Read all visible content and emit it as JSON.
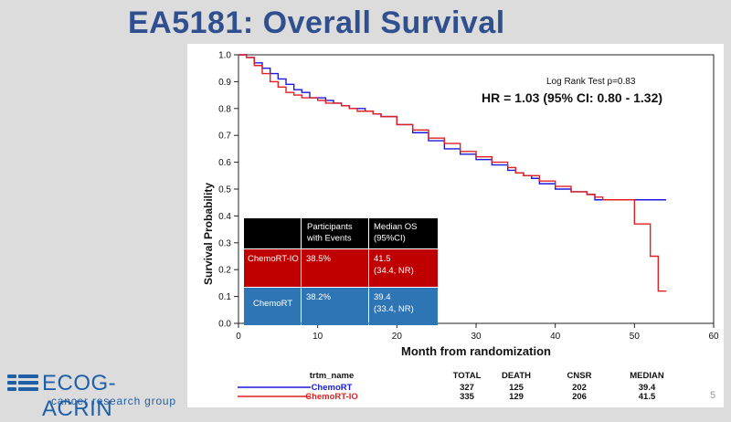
{
  "slide": {
    "title": "EA5181: Overall Survival",
    "page_number": "5"
  },
  "logo": {
    "name": "ECOG-ACRIN",
    "subtitle": "cancer research group"
  },
  "chart_data": {
    "type": "line",
    "xlabel": "Month from randomization",
    "ylabel": "Survival Probability",
    "xlim": [
      0,
      60
    ],
    "ylim": [
      0,
      1.0
    ],
    "xticks": [
      0,
      10,
      20,
      30,
      40,
      50,
      60
    ],
    "yticks": [
      0.0,
      0.1,
      0.2,
      0.3,
      0.4,
      0.5,
      0.6,
      0.7,
      0.8,
      0.9,
      1.0
    ],
    "annotations": {
      "logrank": "Log Rank Test p=0.83",
      "hr": "HR = 1.03 (95% CI: 0.80 - 1.32)"
    },
    "series": [
      {
        "name": "ChemoRT",
        "color": "#1a1adc",
        "x": [
          0,
          1,
          2,
          3,
          4,
          5,
          6,
          7,
          8,
          9,
          10,
          11,
          12,
          13,
          14,
          15,
          16,
          17,
          18,
          20,
          22,
          24,
          26,
          28,
          30,
          32,
          34,
          35,
          36,
          37,
          38,
          40,
          42,
          44,
          45,
          46,
          48,
          50,
          52,
          54
        ],
        "y": [
          1.0,
          0.99,
          0.97,
          0.95,
          0.93,
          0.91,
          0.89,
          0.87,
          0.86,
          0.84,
          0.84,
          0.83,
          0.82,
          0.81,
          0.8,
          0.8,
          0.79,
          0.78,
          0.77,
          0.74,
          0.71,
          0.68,
          0.65,
          0.63,
          0.61,
          0.59,
          0.57,
          0.56,
          0.55,
          0.54,
          0.52,
          0.5,
          0.49,
          0.48,
          0.46,
          0.46,
          0.46,
          0.46,
          0.46,
          0.46
        ]
      },
      {
        "name": "ChemoRT-IO",
        "color": "#e02020",
        "x": [
          0,
          1,
          2,
          3,
          4,
          5,
          6,
          7,
          8,
          9,
          10,
          11,
          12,
          13,
          14,
          15,
          16,
          17,
          18,
          20,
          22,
          24,
          26,
          28,
          30,
          32,
          34,
          35,
          36,
          38,
          40,
          42,
          44,
          45,
          46,
          48,
          49,
          50,
          51,
          52,
          53,
          54
        ],
        "y": [
          1.0,
          0.99,
          0.96,
          0.93,
          0.9,
          0.88,
          0.86,
          0.85,
          0.84,
          0.84,
          0.83,
          0.82,
          0.82,
          0.81,
          0.8,
          0.79,
          0.79,
          0.78,
          0.77,
          0.74,
          0.72,
          0.69,
          0.67,
          0.64,
          0.62,
          0.6,
          0.58,
          0.56,
          0.55,
          0.53,
          0.51,
          0.49,
          0.48,
          0.47,
          0.46,
          0.46,
          0.46,
          0.37,
          0.37,
          0.25,
          0.12,
          0.12
        ]
      }
    ],
    "inset_table": {
      "headers": [
        "",
        "Participants with Events",
        "Median OS (95%CI)"
      ],
      "rows": [
        {
          "arm": "ChemoRT-IO",
          "events": "38.5%",
          "median": "41.5",
          "ci": "(34.4, NR)",
          "color": "#c00000"
        },
        {
          "arm": "ChemoRT",
          "events": "38.2%",
          "median": "39.4",
          "ci": "(33.4, NR)",
          "color": "#2e75b6"
        }
      ]
    },
    "legend_table": {
      "headers": [
        "trtm_name",
        "TOTAL",
        "DEATH",
        "CNSR",
        "MEDIAN"
      ],
      "rows": [
        {
          "name": "ChemoRT",
          "total": "327",
          "death": "125",
          "cnsr": "202",
          "median": "39.4",
          "color": "#1a1adc"
        },
        {
          "name": "ChemoRT-IO",
          "total": "335",
          "death": "129",
          "cnsr": "206",
          "median": "41.5",
          "color": "#e02020"
        }
      ]
    }
  }
}
